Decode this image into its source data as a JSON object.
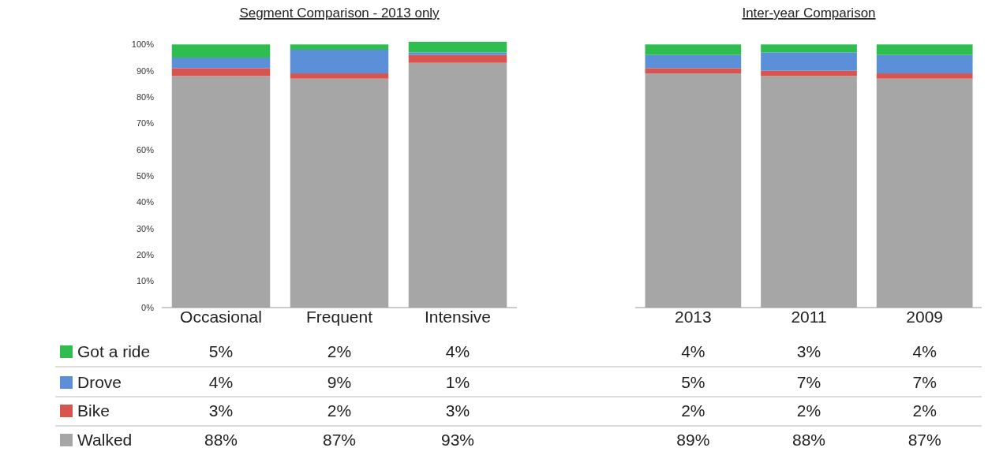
{
  "chart_data": [
    {
      "type": "bar",
      "title": "Segment Comparison - 2013 only",
      "stacked": true,
      "categories": [
        "Occasional",
        "Frequent",
        "Intensive"
      ],
      "ylim": [
        0,
        101
      ],
      "yticks": [
        {
          "value": 0,
          "label": "0%"
        },
        {
          "value": 10,
          "label": "10%"
        },
        {
          "value": 20,
          "label": "20%"
        },
        {
          "value": 30,
          "label": "30%"
        },
        {
          "value": 40,
          "label": "40%"
        },
        {
          "value": 50,
          "label": "50%"
        },
        {
          "value": 60,
          "label": "60%"
        },
        {
          "value": 70,
          "label": "70%"
        },
        {
          "value": 80,
          "label": "80%"
        },
        {
          "value": 90,
          "label": "90%"
        },
        {
          "value": 100,
          "label": "100%"
        }
      ],
      "legend": "bottom left",
      "series": [
        {
          "name": "Walked",
          "color": "#a6a6a6",
          "values": [
            88,
            87,
            93
          ],
          "value_labels": [
            "88%",
            "87%",
            "93%"
          ]
        },
        {
          "name": "Bike",
          "color": "#d9534f",
          "values": [
            3,
            2,
            3
          ],
          "value_labels": [
            "3%",
            "2%",
            "3%"
          ]
        },
        {
          "name": "Drove",
          "color": "#5b8fd8",
          "values": [
            4,
            9,
            1
          ],
          "value_labels": [
            "4%",
            "9%",
            "1%"
          ]
        },
        {
          "name": "Got a ride",
          "color": "#2ebd4e",
          "values": [
            5,
            2,
            4
          ],
          "value_labels": [
            "5%",
            "2%",
            "4%"
          ]
        }
      ]
    },
    {
      "type": "bar",
      "title": "Inter-year Comparison",
      "stacked": true,
      "categories": [
        "2013",
        "2011",
        "2009"
      ],
      "ylim": [
        0,
        101
      ],
      "tick_labels": "x",
      "series": [
        {
          "color": "#a6a6a6",
          "values": [
            89,
            88,
            87
          ],
          "value_labels": [
            "89%",
            "88%",
            "87%"
          ]
        },
        {
          "color": "#d9534f",
          "values": [
            2,
            2,
            2
          ],
          "value_labels": [
            "2%",
            "2%",
            "2%"
          ]
        },
        {
          "color": "#5b8fd8",
          "values": [
            5,
            7,
            7
          ],
          "value_labels": [
            "5%",
            "7%",
            "7%"
          ]
        },
        {
          "color": "#2ebd4e",
          "values": [
            4,
            3,
            4
          ],
          "value_labels": [
            "4%",
            "3%",
            "4%"
          ]
        }
      ]
    }
  ]
}
